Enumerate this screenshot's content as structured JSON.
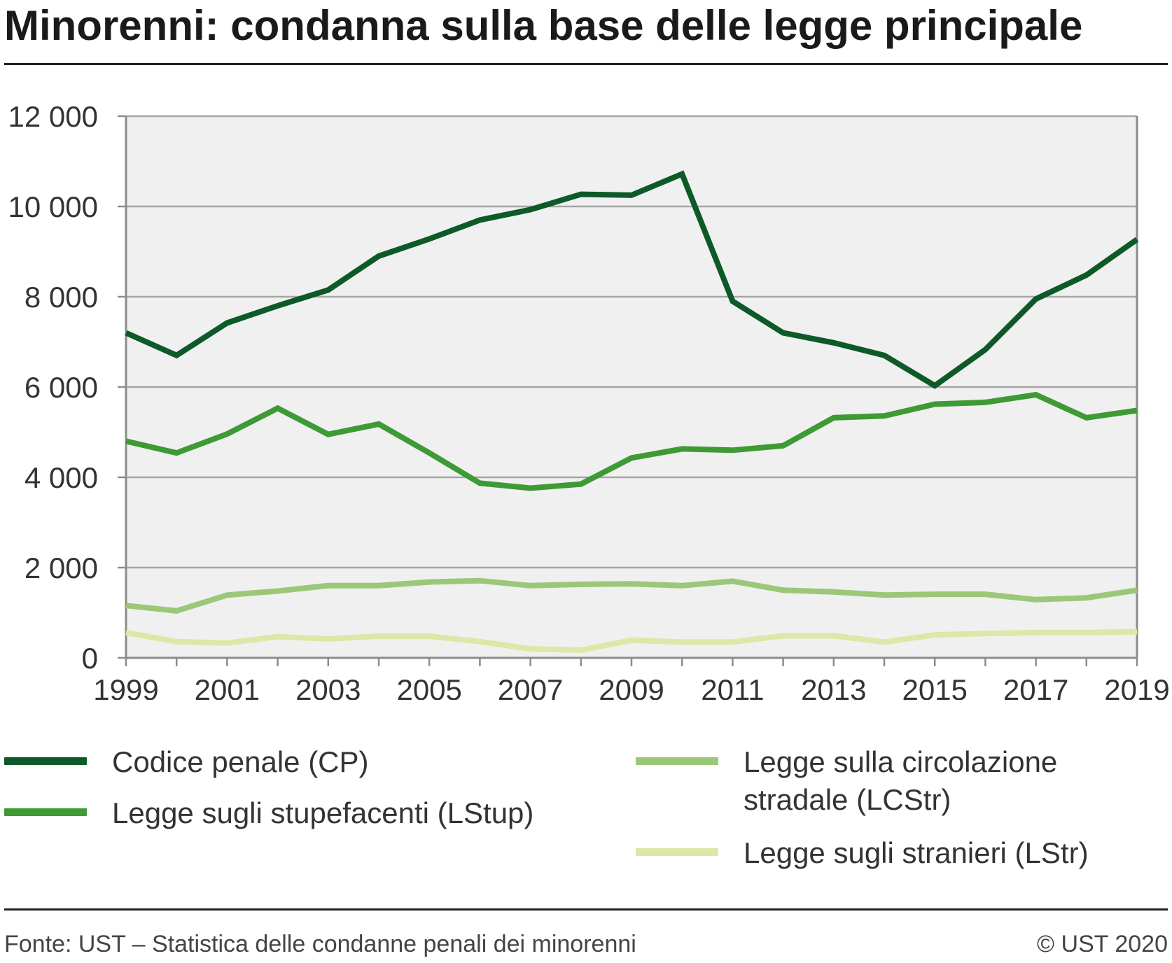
{
  "title": "Minorenni: condanna sulla base delle legge principale",
  "footer": {
    "source": "Fonte: UST – Statistica delle condanne penali dei minorenni",
    "copyright": "© UST 2020"
  },
  "colors": {
    "plot_bg": "#f0f0f0",
    "grid": "#a6a6a6",
    "axis": "#8c8c8c"
  },
  "chart_data": {
    "type": "line",
    "title": "Minorenni: condanna sulla base delle legge principale",
    "xlabel": "",
    "ylabel": "",
    "x": [
      1999,
      2000,
      2001,
      2002,
      2003,
      2004,
      2005,
      2006,
      2007,
      2008,
      2009,
      2010,
      2011,
      2012,
      2013,
      2014,
      2015,
      2016,
      2017,
      2018,
      2019
    ],
    "xlim": [
      1999,
      2019
    ],
    "ylim": [
      0,
      12000
    ],
    "x_ticks": [
      1999,
      2001,
      2003,
      2005,
      2007,
      2009,
      2011,
      2013,
      2015,
      2017,
      2019
    ],
    "y_ticks": [
      0,
      2000,
      4000,
      6000,
      8000,
      10000,
      12000
    ],
    "y_tick_labels": [
      "0",
      "2 000",
      "4 000",
      "6 000",
      "8 000",
      "10 000",
      "12 000"
    ],
    "grid": true,
    "legend_position": "bottom",
    "series": [
      {
        "name": "Codice penale (CP)",
        "color": "#0d5a28",
        "values": [
          7200,
          6700,
          7420,
          7800,
          8150,
          8900,
          9280,
          9700,
          9930,
          10270,
          10250,
          10720,
          7900,
          7200,
          6980,
          6700,
          6030,
          6830,
          7950,
          8480,
          9270
        ]
      },
      {
        "name": "Legge sugli stupefacenti (LStup)",
        "color": "#3e9a35",
        "values": [
          4800,
          4540,
          4960,
          5530,
          4950,
          5180,
          4540,
          3870,
          3760,
          3850,
          4430,
          4630,
          4600,
          4700,
          5320,
          5360,
          5620,
          5660,
          5830,
          5320,
          5480
        ]
      },
      {
        "name": "Legge sulla circolazione stradale (LCStr)",
        "color": "#9ac878",
        "values": [
          1160,
          1040,
          1390,
          1480,
          1600,
          1600,
          1680,
          1710,
          1600,
          1630,
          1640,
          1600,
          1700,
          1500,
          1460,
          1390,
          1410,
          1410,
          1290,
          1330,
          1500
        ]
      },
      {
        "name": "Legge sugli stranieri (LStr)",
        "color": "#dbe8a8",
        "values": [
          560,
          360,
          330,
          470,
          420,
          480,
          480,
          360,
          200,
          170,
          390,
          350,
          350,
          490,
          490,
          350,
          510,
          540,
          560,
          560,
          580
        ]
      }
    ]
  },
  "legend": {
    "items": [
      {
        "label": "Codice penale (CP)"
      },
      {
        "label": "Legge sugli stupefacenti (LStup)"
      },
      {
        "label": "Legge sulla circolazione stradale (LCStr)",
        "line1": "Legge sulla circolazione",
        "line2": "stradale (LCStr)"
      },
      {
        "label": "Legge sugli stranieri (LStr)"
      }
    ]
  }
}
